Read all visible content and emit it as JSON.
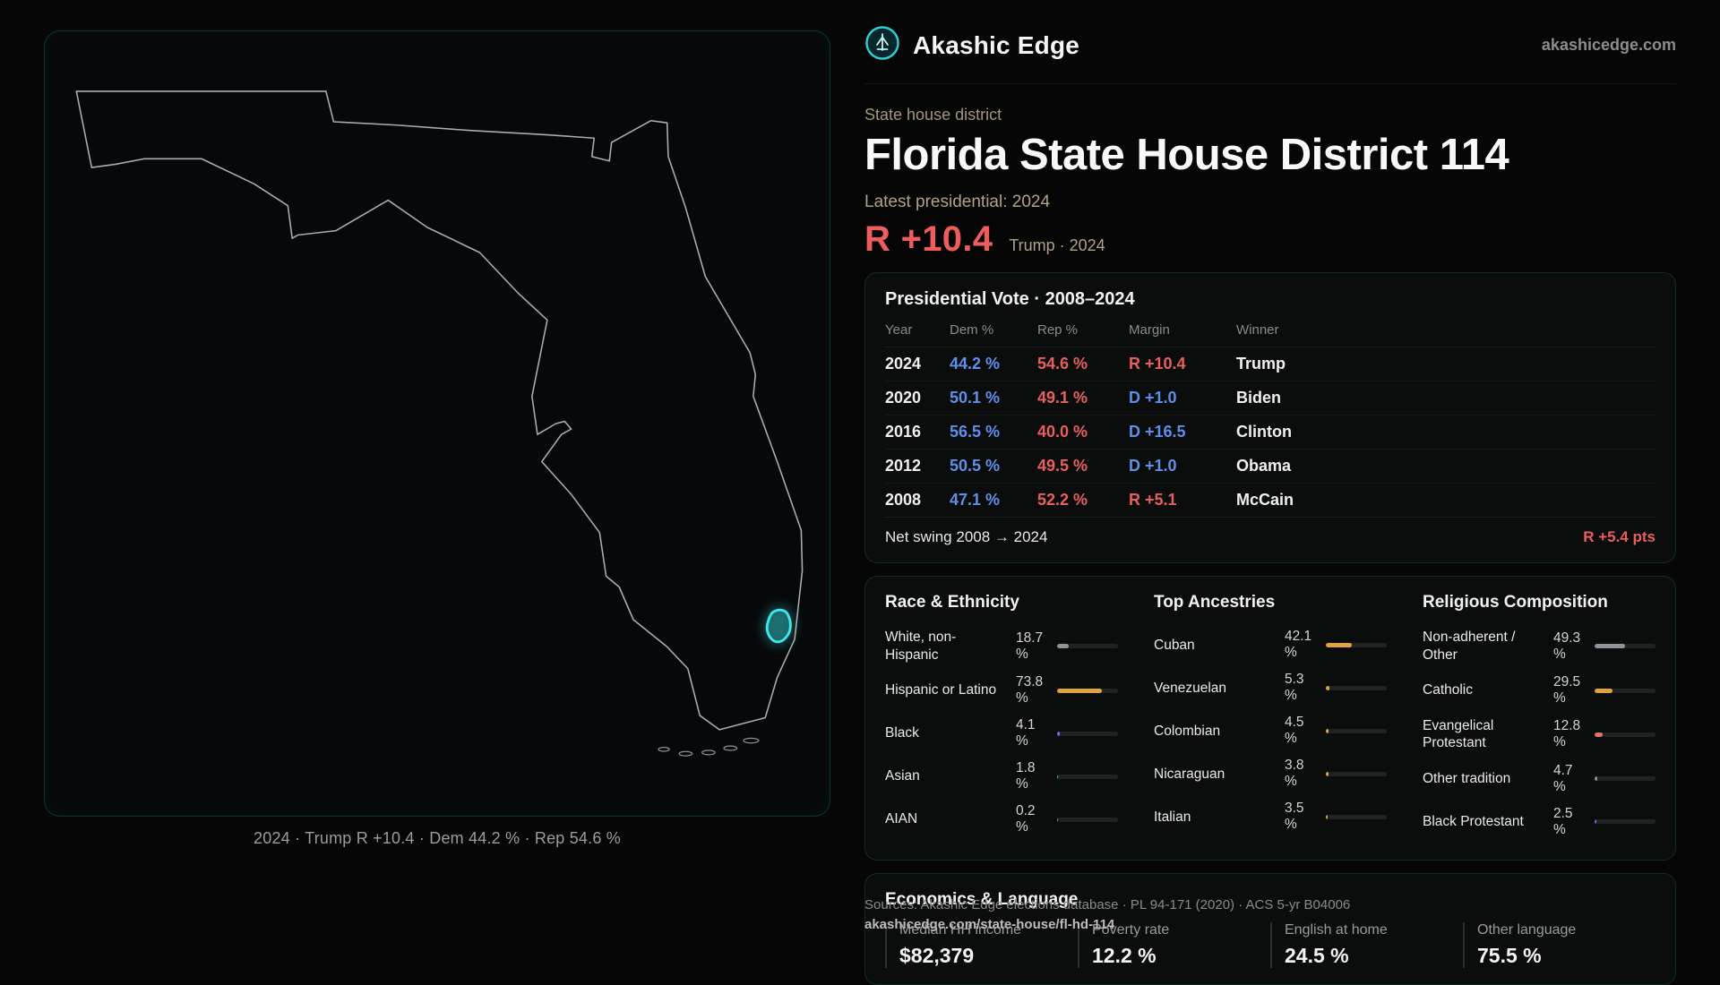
{
  "header": {
    "brand": "Akashic Edge",
    "site": "akashicedge.com",
    "kicker": "State house district",
    "title": "Florida State House District 114",
    "latest_label": "Latest presidential: 2024",
    "margin_value": "R +10.4",
    "margin_note": "Trump · 2024"
  },
  "map": {
    "caption": "2024 · Trump R +10.4 · Dem 44.2 % · Rep 54.6 %"
  },
  "vote": {
    "title": "Presidential Vote · 2008–2024",
    "columns": [
      "Year",
      "Dem %",
      "Rep %",
      "Margin",
      "Winner"
    ],
    "rows": [
      {
        "year": "2024",
        "dem": "44.2 %",
        "rep": "54.6 %",
        "margin": "R +10.4",
        "party": "R",
        "winner": "Trump"
      },
      {
        "year": "2020",
        "dem": "50.1 %",
        "rep": "49.1 %",
        "margin": "D +1.0",
        "party": "D",
        "winner": "Biden"
      },
      {
        "year": "2016",
        "dem": "56.5 %",
        "rep": "40.0 %",
        "margin": "D +16.5",
        "party": "D",
        "winner": "Clinton"
      },
      {
        "year": "2012",
        "dem": "50.5 %",
        "rep": "49.5 %",
        "margin": "D +1.0",
        "party": "D",
        "winner": "Obama"
      },
      {
        "year": "2008",
        "dem": "47.1 %",
        "rep": "52.2 %",
        "margin": "R +5.1",
        "party": "R",
        "winner": "McCain"
      }
    ],
    "footer_label": "Net swing 2008 → 2024",
    "footer_value": "R +5.4 pts"
  },
  "demographics": {
    "groups": [
      {
        "title": "Race & Ethnicity",
        "rows": [
          {
            "label": "White, non-Hispanic",
            "value": "18.7 %",
            "pct": 18.7,
            "color": "gray"
          },
          {
            "label": "Hispanic or Latino",
            "value": "73.8 %",
            "pct": 73.8,
            "color": "amber"
          },
          {
            "label": "Black",
            "value": "4.1 %",
            "pct": 4.1,
            "color": "purple"
          },
          {
            "label": "Asian",
            "value": "1.8 %",
            "pct": 1.8,
            "color": "teal"
          },
          {
            "label": "AIAN",
            "value": "0.2 %",
            "pct": 0.2,
            "color": "gray"
          }
        ]
      },
      {
        "title": "Top Ancestries",
        "rows": [
          {
            "label": "Cuban",
            "value": "42.1 %",
            "pct": 42.1,
            "color": "amber"
          },
          {
            "label": "Venezuelan",
            "value": "5.3 %",
            "pct": 5.3,
            "color": "amber"
          },
          {
            "label": "Colombian",
            "value": "4.5 %",
            "pct": 4.5,
            "color": "amber"
          },
          {
            "label": "Nicaraguan",
            "value": "3.8 %",
            "pct": 3.8,
            "color": "amber"
          },
          {
            "label": "Italian",
            "value": "3.5 %",
            "pct": 3.5,
            "color": "amber"
          }
        ]
      },
      {
        "title": "Religious Composition",
        "rows": [
          {
            "label": "Non-adherent / Other",
            "value": "49.3 %",
            "pct": 49.3,
            "color": "gray"
          },
          {
            "label": "Catholic",
            "value": "29.5 %",
            "pct": 29.5,
            "color": "amber"
          },
          {
            "label": "Evangelical Protestant",
            "value": "12.8 %",
            "pct": 12.8,
            "color": "salmon"
          },
          {
            "label": "Other tradition",
            "value": "4.7 %",
            "pct": 4.7,
            "color": "gray"
          },
          {
            "label": "Black Protestant",
            "value": "2.5 %",
            "pct": 2.5,
            "color": "purple"
          }
        ]
      }
    ]
  },
  "economics": {
    "title": "Economics & Language",
    "stats": [
      {
        "label": "Median HH income",
        "value": "$82,379"
      },
      {
        "label": "Poverty rate",
        "value": "12.2 %"
      },
      {
        "label": "English at home",
        "value": "24.5 %"
      },
      {
        "label": "Other language",
        "value": "75.5 %"
      }
    ]
  },
  "footer": {
    "sources": "Sources: Akashic Edge elections database · PL 94-171 (2020) · ACS 5-yr B04006",
    "permalink": "akashicedge.com/state-house/fl-hd-114"
  },
  "colors": {
    "dem": "#5f8fe8",
    "rep": "#e85f5f",
    "accent": "#2bd1d6",
    "tan": "#b0a286",
    "gray": "#8f949c",
    "amber": "#dfa440",
    "purple": "#6e68ea",
    "teal": "#3fd4c6",
    "salmon": "#e0736c"
  }
}
